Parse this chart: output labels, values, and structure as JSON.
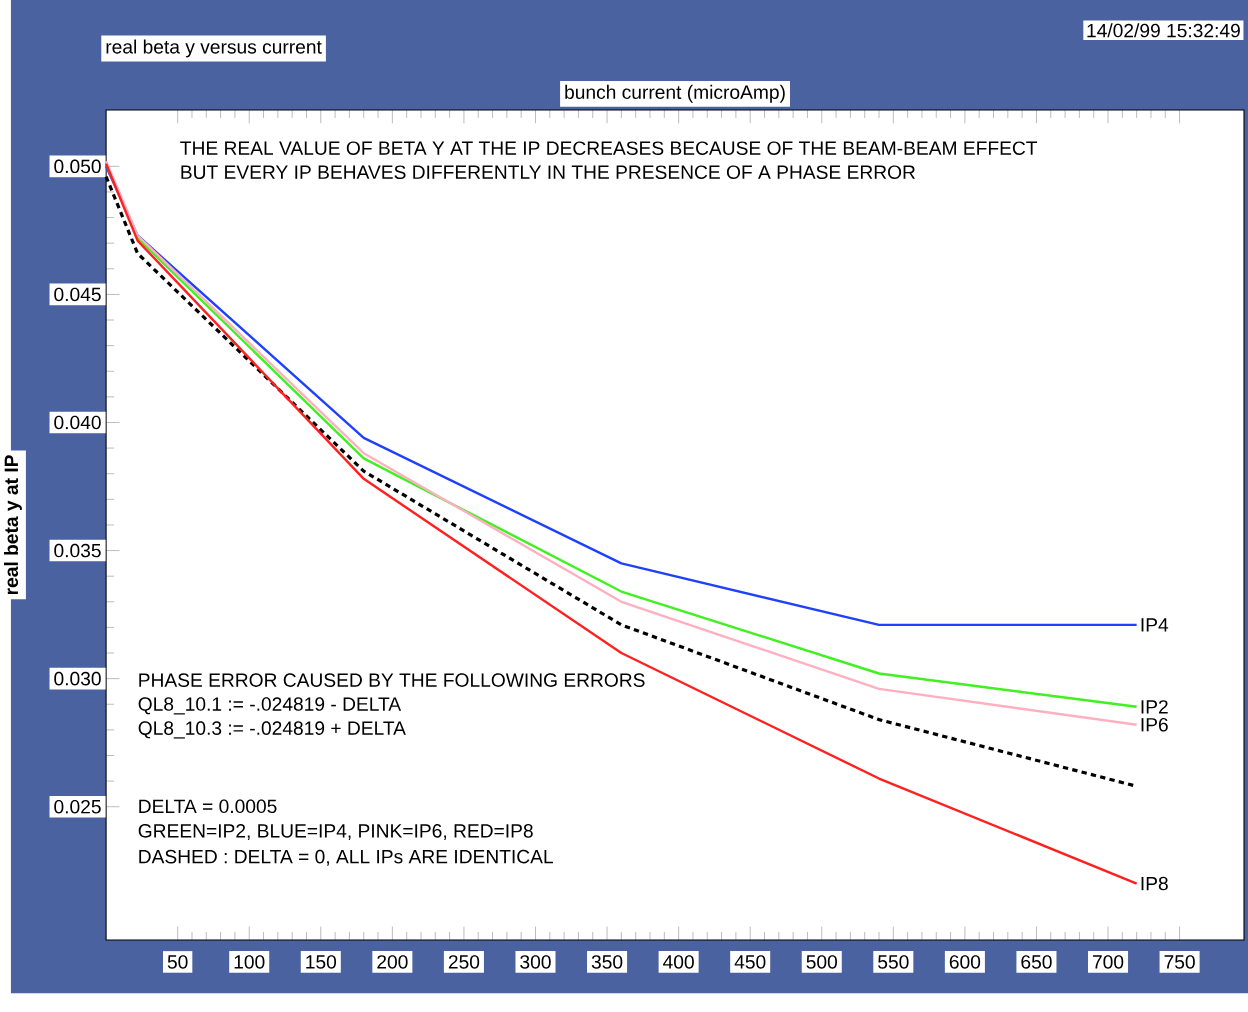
{
  "chart_data": {
    "type": "line",
    "title": "real beta y versus current",
    "xlabel": "bunch current (microAmp)",
    "ylabel": "real beta y at IP",
    "x": [
      0,
      22,
      180,
      360,
      540,
      720
    ],
    "xlim": [
      0,
      795
    ],
    "ylim": [
      0.0198,
      0.0522
    ],
    "xticks": [
      50,
      100,
      150,
      200,
      250,
      300,
      350,
      400,
      450,
      500,
      550,
      600,
      650,
      700,
      750
    ],
    "yticks": [
      {
        "value": 0.025,
        "label": "0.025"
      },
      {
        "value": 0.03,
        "label": "0.030"
      },
      {
        "value": 0.035,
        "label": "0.035"
      },
      {
        "value": 0.04,
        "label": "0.040"
      },
      {
        "value": 0.045,
        "label": "0.045"
      },
      {
        "value": 0.05,
        "label": "0.050"
      }
    ],
    "line_style": "solid",
    "series": [
      {
        "name": "IP4",
        "color": "#2040ff",
        "values": [
          0.05,
          0.0473,
          0.0394,
          0.0345,
          0.0321,
          0.0321
        ]
      },
      {
        "name": "IP2",
        "color": "#40f020",
        "values": [
          0.0501,
          0.0472,
          0.0386,
          0.0334,
          0.0302,
          0.0289
        ]
      },
      {
        "name": "IP6",
        "color": "#ffb0c0",
        "values": [
          0.0502,
          0.0473,
          0.0388,
          0.033,
          0.0296,
          0.0282
        ]
      },
      {
        "color": "#000000",
        "line_style": "dashed",
        "values": [
          0.0496,
          0.0466,
          0.0381,
          0.0321,
          0.0284,
          0.0258
        ]
      },
      {
        "name": "IP8",
        "color": "#ff2020",
        "values": [
          0.0501,
          0.0471,
          0.0378,
          0.031,
          0.0261,
          0.022
        ]
      }
    ],
    "annotations": [
      "THE REAL VALUE OF BETA Y AT THE IP DECREASES BECAUSE OF THE BEAM-BEAM EFFECT",
      "BUT EVERY IP BEHAVES DIFFERENTLY IN THE PRESENCE OF A PHASE ERROR",
      "PHASE ERROR CAUSED BY THE FOLLOWING ERRORS",
      "QL8_10.1 := -.024819 - DELTA",
      "QL8_10.3 := -.024819 + DELTA",
      "DELTA = 0.0005",
      "GREEN=IP2, BLUE=IP4, PINK=IP6, RED=IP8",
      "DASHED : DELTA = 0, ALL IPs ARE IDENTICAL",
      "14/02/99 15:32:49"
    ]
  }
}
